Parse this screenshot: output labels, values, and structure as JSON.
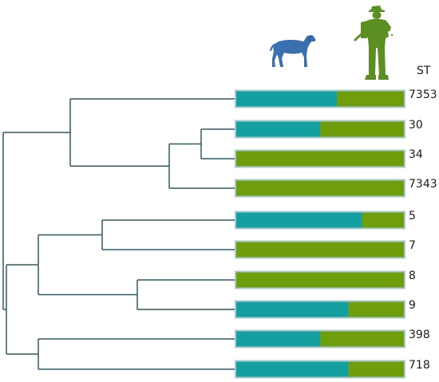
{
  "header": {
    "st_label": "ST",
    "dog_icon": "dog-icon",
    "hunter_icon": "hunter-icon"
  },
  "colors": {
    "dog_share": "#14a0a0",
    "human_share": "#6e9e0c",
    "bar_border": "#a9c9cf",
    "tree_line": "#2c5c62",
    "dog_icon": "#3a6fb0",
    "hunter_icon": "#5b8f22"
  },
  "rows": [
    {
      "st": "7353",
      "dog_fraction": 0.6,
      "human_fraction": 0.4
    },
    {
      "st": "30",
      "dog_fraction": 0.5,
      "human_fraction": 0.5
    },
    {
      "st": "34",
      "dog_fraction": 0.0,
      "human_fraction": 1.0
    },
    {
      "st": "7343",
      "dog_fraction": 0.0,
      "human_fraction": 1.0
    },
    {
      "st": "5",
      "dog_fraction": 0.75,
      "human_fraction": 0.25
    },
    {
      "st": "7",
      "dog_fraction": 0.0,
      "human_fraction": 1.0
    },
    {
      "st": "8",
      "dog_fraction": 0.0,
      "human_fraction": 1.0
    },
    {
      "st": "9",
      "dog_fraction": 0.67,
      "human_fraction": 0.33
    },
    {
      "st": "398",
      "dog_fraction": 0.5,
      "human_fraction": 0.5
    },
    {
      "st": "718",
      "dog_fraction": 0.67,
      "human_fraction": 0.33
    }
  ]
}
